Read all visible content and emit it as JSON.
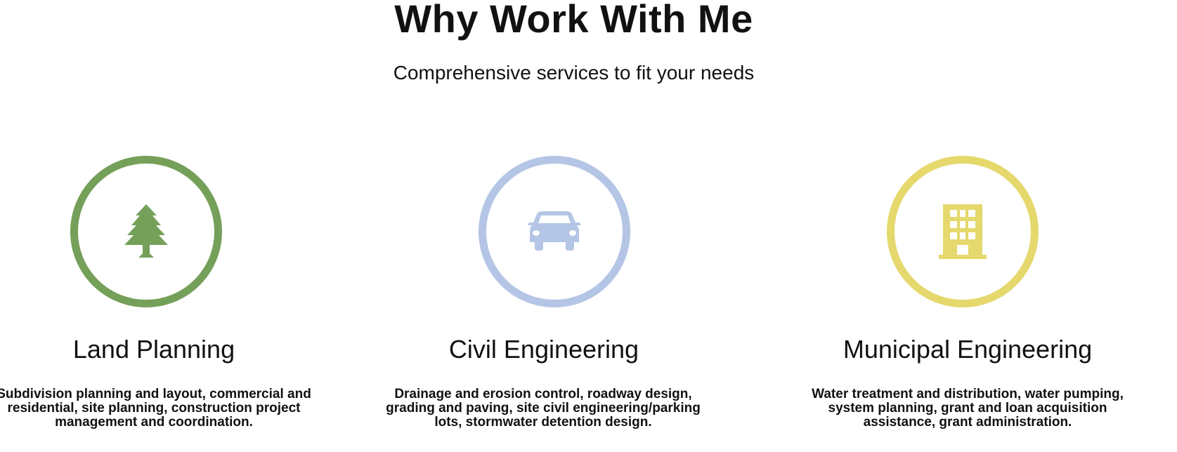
{
  "header": {
    "title": "Why Work With Me",
    "subtitle": "Comprehensive services to fit your needs"
  },
  "services": [
    {
      "title": "Land Planning",
      "description": "Subdivision planning and layout, commercial and residential, site planning, construction project management and coordination.",
      "icon": "tree-icon",
      "color": "#75a05a"
    },
    {
      "title": "Civil Engineering",
      "description": "Drainage and erosion control, roadway design, grading and paving, site civil engineering/parking lots, stormwater detention design.",
      "icon": "car-icon",
      "color": "#b4c5e6"
    },
    {
      "title": "Municipal Engineering",
      "description": "Water treatment and distribution, water pumping, system planning, grant and loan acquisition assistance, grant administration.",
      "icon": "building-icon",
      "color": "#e5d86c"
    }
  ]
}
